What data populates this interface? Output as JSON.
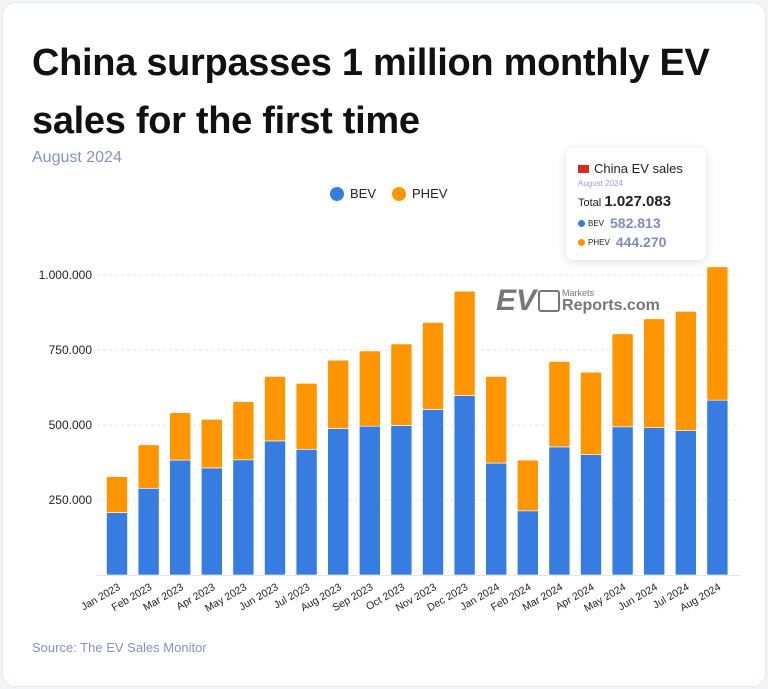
{
  "header": {
    "title": "China surpasses 1 million monthly EV sales for the first time",
    "subtitle": "August 2024"
  },
  "tooltip": {
    "title": "China EV sales",
    "flag": "china-flag-icon",
    "date": "August 2024",
    "total_label": "Total",
    "total": "1.027.083",
    "bev_label": "BEV",
    "bev": "582.813",
    "phev_label": "PHEV",
    "phev": "444.270"
  },
  "watermark": {
    "text": "EV Markets Reports.com"
  },
  "source": "Source: The EV Sales Monitor",
  "chart_data": {
    "type": "bar",
    "stacked": true,
    "grid": true,
    "legend": "top-center",
    "title": "China surpasses 1 million monthly EV sales for the first time",
    "categories": [
      "Jan 2023",
      "Feb 2023",
      "Mar 2023",
      "Apr 2023",
      "May 2023",
      "Jun 2023",
      "Jul 2023",
      "Aug 2023",
      "Sep 2023",
      "Oct 2023",
      "Nov 2023",
      "Dec 2023",
      "Jan 2024",
      "Feb 2024",
      "Mar 2024",
      "Apr 2024",
      "May 2024",
      "Jun 2024",
      "Jul 2024",
      "Aug 2024"
    ],
    "series": [
      {
        "name": "BEV",
        "color": "#377de1",
        "values": [
          208000,
          289000,
          383000,
          357000,
          384000,
          447000,
          419000,
          488000,
          496000,
          498000,
          552000,
          598000,
          373000,
          214000,
          427000,
          401000,
          494000,
          491000,
          481000,
          582813
        ]
      },
      {
        "name": "PHEV",
        "color": "#ff9500",
        "values": [
          120000,
          145000,
          158000,
          162000,
          194000,
          215000,
          220000,
          228000,
          251000,
          272000,
          290000,
          348000,
          289000,
          169000,
          285000,
          275000,
          310000,
          363000,
          398000,
          444270
        ]
      }
    ],
    "ylim": [
      0,
      1050000
    ],
    "yticks": [
      250000,
      500000,
      750000,
      1000000
    ],
    "ytick_labels": [
      "250.000",
      "500.000",
      "750.000",
      "1.000.000"
    ]
  }
}
